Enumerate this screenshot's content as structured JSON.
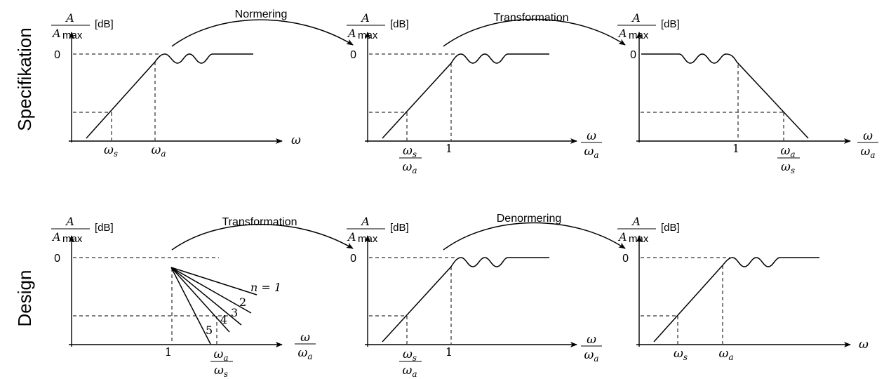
{
  "row_labels": {
    "top": "Specifikation",
    "bottom": "Design"
  },
  "arrows": {
    "normering": "Normering",
    "transformation_top": "Transformation",
    "transformation_bottom": "Transformation",
    "denormering": "Denormering"
  },
  "y_label": {
    "num": "A",
    "den_sym": "A",
    "den_sub": "max",
    "unit": "[dB]"
  },
  "zero": "0",
  "one": "1",
  "omega": "ω",
  "omega_s": "ωs",
  "omega_a": "ωa",
  "ratio_s_over_a": {
    "num": "ωs",
    "den": "ωa"
  },
  "ratio_a_over_s": {
    "num": "ωa",
    "den": "ωs"
  },
  "ratio_w_over_a": {
    "num": "ω",
    "den": "ωa"
  },
  "order_labels": [
    "n = 1",
    "2",
    "3",
    "4",
    "5"
  ]
}
